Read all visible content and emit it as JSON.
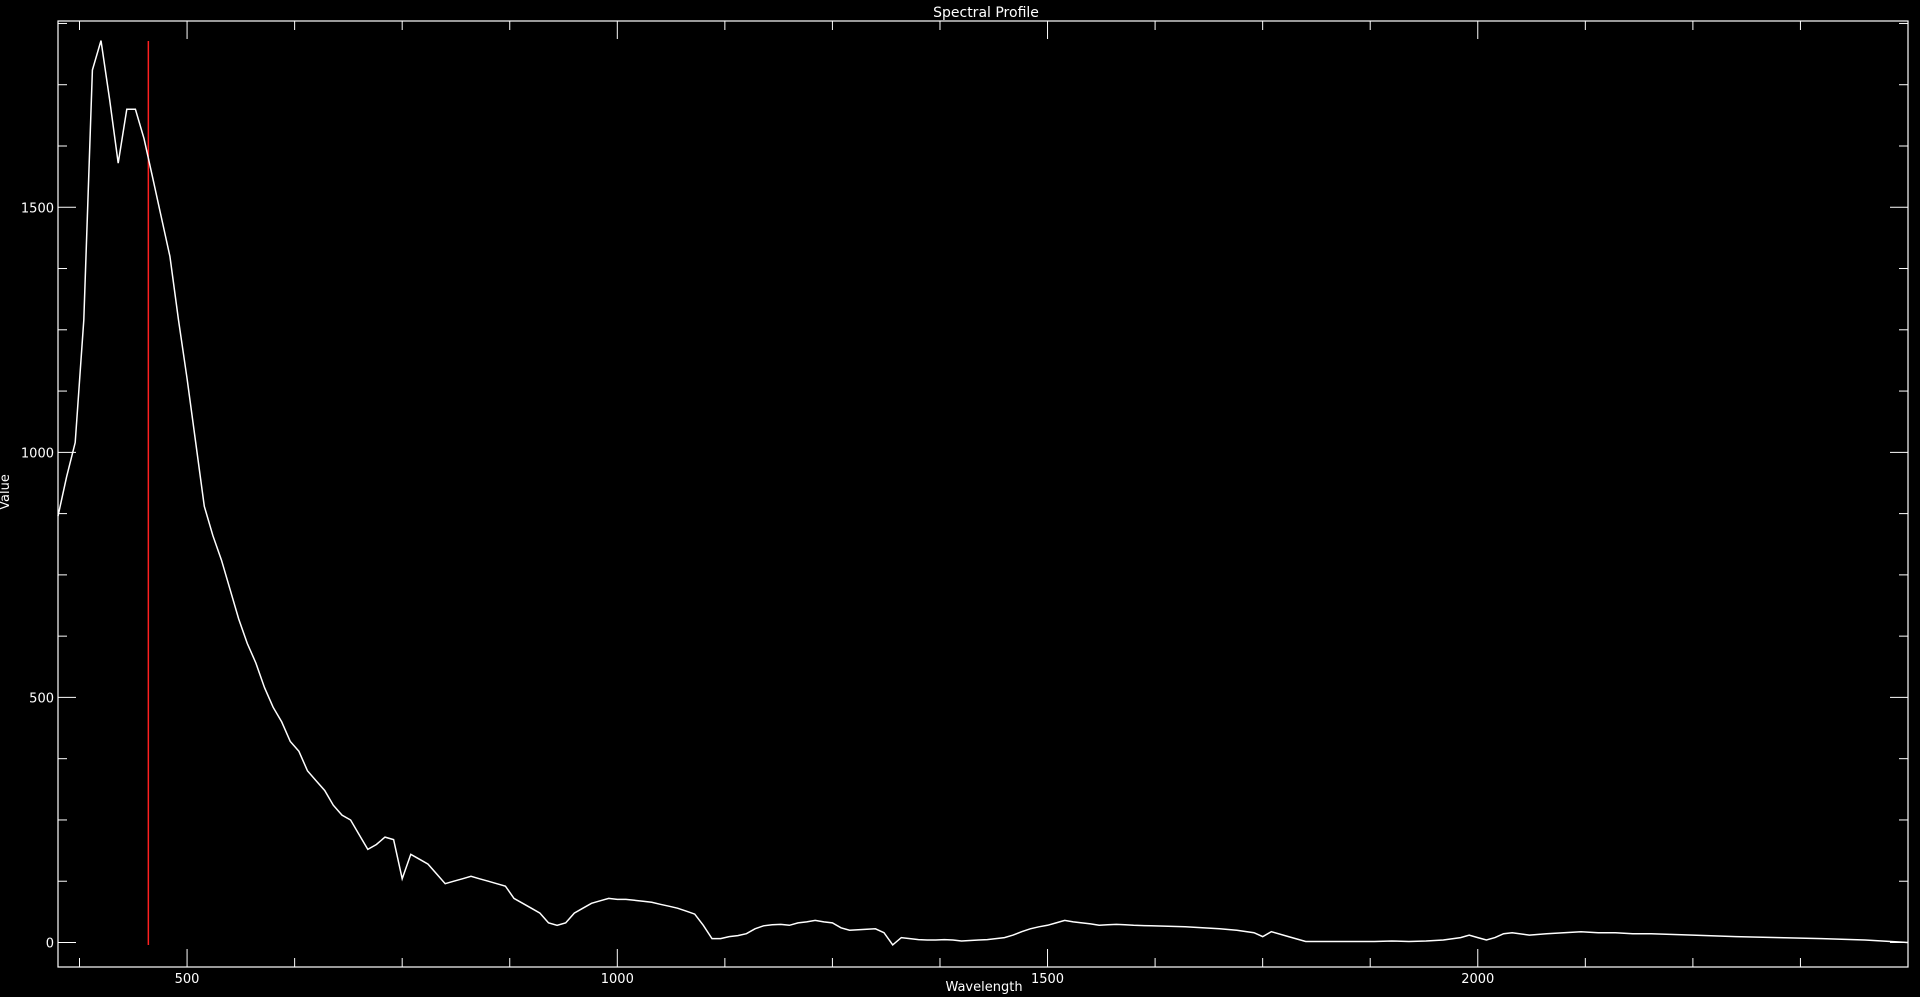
{
  "chart_data": {
    "type": "line",
    "title": "Spectral Profile",
    "xlabel": "Wavelength",
    "ylabel": "Value",
    "xlim": [
      350,
      2500
    ],
    "ylim": [
      -50,
      1880
    ],
    "xticks": [
      500,
      1000,
      1500,
      2000
    ],
    "yticks": [
      0,
      500,
      1000,
      1500
    ],
    "x_minor_step": 125,
    "y_minor_step": 125,
    "grid": false,
    "colors": {
      "background": "#000000",
      "axes": "#ffffff",
      "line": "#ffffff",
      "marker": "#ff2020"
    },
    "marker_x": 455,
    "series": [
      {
        "x": [
          350,
          360,
          370,
          380,
          390,
          400,
          410,
          420,
          430,
          440,
          450,
          460,
          470,
          480,
          490,
          500,
          510,
          520,
          530,
          540,
          550,
          560,
          570,
          580,
          590,
          600,
          610,
          620,
          630,
          640,
          650,
          660,
          670,
          680,
          690,
          700,
          710,
          720,
          730,
          740,
          750,
          760,
          770,
          780,
          790,
          800,
          810,
          820,
          830,
          840,
          850,
          860,
          870,
          880,
          890,
          900,
          910,
          920,
          930,
          940,
          950,
          960,
          970,
          980,
          990,
          1000,
          1010,
          1020,
          1030,
          1040,
          1050,
          1060,
          1070,
          1080,
          1090,
          1100,
          1110,
          1120,
          1130,
          1140,
          1150,
          1160,
          1170,
          1180,
          1190,
          1200,
          1210,
          1220,
          1230,
          1240,
          1250,
          1260,
          1270,
          1280,
          1290,
          1300,
          1310,
          1320,
          1330,
          1340,
          1350,
          1360,
          1370,
          1380,
          1390,
          1400,
          1410,
          1420,
          1430,
          1440,
          1450,
          1460,
          1470,
          1480,
          1490,
          1500,
          1510,
          1520,
          1530,
          1540,
          1550,
          1560,
          1570,
          1580,
          1590,
          1600,
          1620,
          1640,
          1660,
          1680,
          1700,
          1720,
          1740,
          1750,
          1760,
          1780,
          1800,
          1820,
          1840,
          1860,
          1880,
          1900,
          1920,
          1940,
          1960,
          1980,
          1990,
          2000,
          2010,
          2020,
          2030,
          2040,
          2060,
          2080,
          2100,
          2120,
          2140,
          2160,
          2180,
          2200,
          2250,
          2300,
          2350,
          2400,
          2450,
          2480,
          2500
        ],
        "y": [
          870,
          950,
          1020,
          1270,
          1780,
          1840,
          1720,
          1590,
          1700,
          1700,
          1640,
          1560,
          1480,
          1400,
          1270,
          1150,
          1020,
          890,
          830,
          780,
          720,
          660,
          610,
          570,
          520,
          480,
          450,
          410,
          390,
          350,
          330,
          310,
          280,
          260,
          250,
          220,
          190,
          200,
          215,
          210,
          130,
          180,
          170,
          160,
          140,
          120,
          125,
          130,
          135,
          130,
          125,
          120,
          115,
          90,
          80,
          70,
          60,
          40,
          35,
          40,
          60,
          70,
          80,
          85,
          90,
          88,
          88,
          86,
          84,
          82,
          78,
          74,
          70,
          64,
          58,
          35,
          8,
          8,
          12,
          14,
          18,
          28,
          34,
          36,
          37,
          35,
          40,
          42,
          45,
          42,
          40,
          30,
          25,
          26,
          27,
          28,
          20,
          -5,
          10,
          8,
          6,
          5,
          5,
          6,
          5,
          3,
          4,
          5,
          6,
          8,
          10,
          15,
          22,
          28,
          32,
          35,
          40,
          45,
          42,
          40,
          38,
          35,
          36,
          37,
          36,
          35,
          34,
          33,
          32,
          30,
          28,
          25,
          20,
          12,
          22,
          12,
          2,
          2,
          2,
          2,
          2,
          3,
          2,
          3,
          5,
          10,
          15,
          10,
          5,
          10,
          18,
          20,
          15,
          18,
          20,
          22,
          20,
          20,
          18,
          18,
          15,
          12,
          10,
          8,
          5,
          2,
          0
        ]
      }
    ]
  }
}
